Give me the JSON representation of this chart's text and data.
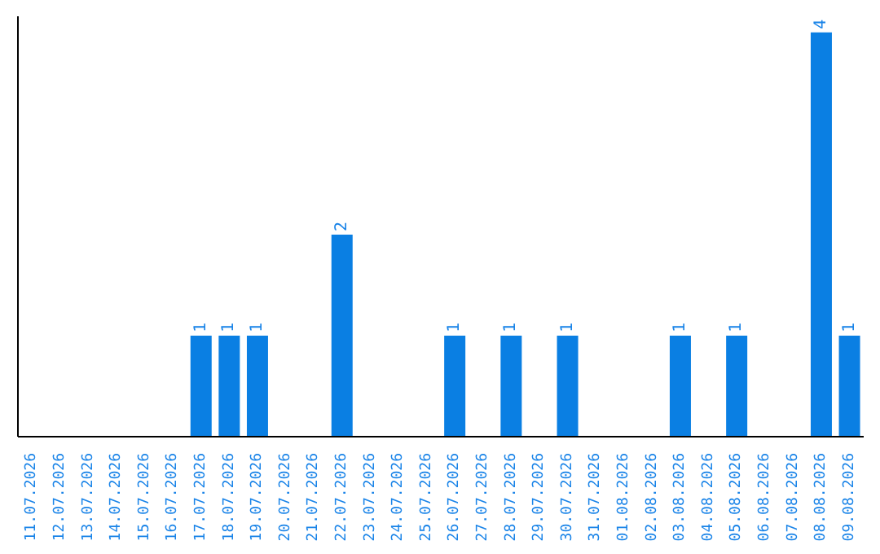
{
  "chart_data": {
    "type": "bar",
    "categories": [
      "11.07.2026",
      "12.07.2026",
      "13.07.2026",
      "14.07.2026",
      "15.07.2026",
      "16.07.2026",
      "17.07.2026",
      "18.07.2026",
      "19.07.2026",
      "20.07.2026",
      "21.07.2026",
      "22.07.2026",
      "23.07.2026",
      "24.07.2026",
      "25.07.2026",
      "26.07.2026",
      "27.07.2026",
      "28.07.2026",
      "29.07.2026",
      "30.07.2026",
      "31.07.2026",
      "01.08.2026",
      "02.08.2026",
      "03.08.2026",
      "04.08.2026",
      "05.08.2026",
      "06.08.2026",
      "07.08.2026",
      "08.08.2026",
      "09.08.2026"
    ],
    "values": [
      0,
      0,
      0,
      0,
      0,
      0,
      1,
      1,
      1,
      0,
      0,
      2,
      0,
      0,
      0,
      1,
      0,
      1,
      0,
      1,
      0,
      0,
      0,
      1,
      0,
      1,
      0,
      0,
      4,
      1
    ],
    "value_labels": [
      null,
      null,
      null,
      null,
      null,
      null,
      "1",
      "1",
      "1",
      null,
      null,
      "2",
      null,
      null,
      null,
      "1",
      null,
      "1",
      null,
      "1",
      null,
      null,
      null,
      "1",
      null,
      "1",
      null,
      null,
      "4",
      "1"
    ],
    "color": "#0a7fe3",
    "grid": false,
    "legend": false
  }
}
